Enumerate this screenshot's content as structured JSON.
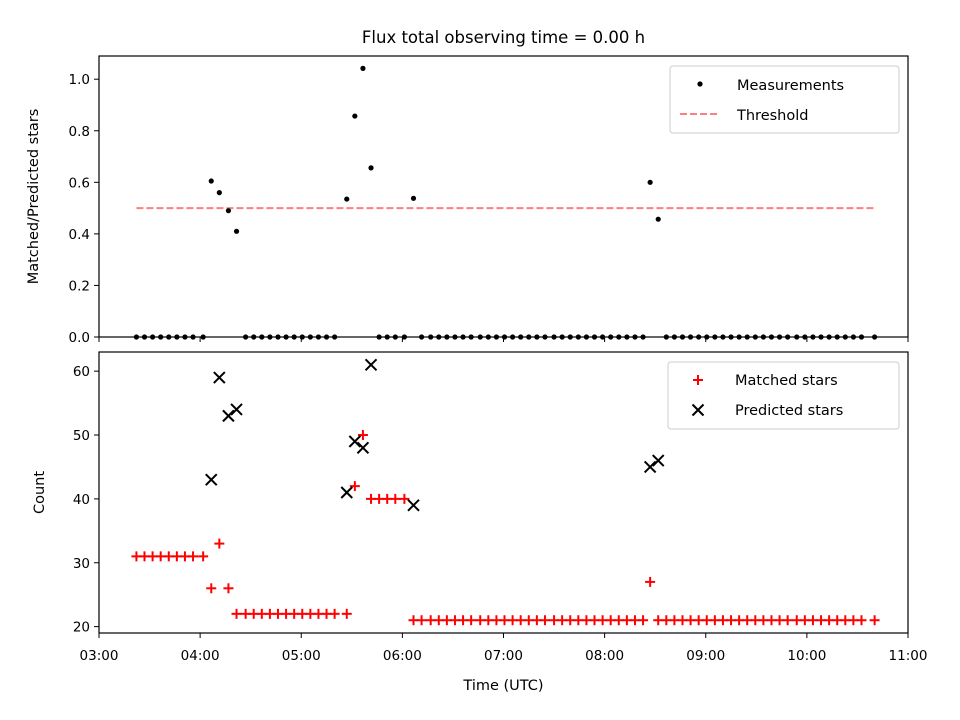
{
  "chart_data": [
    {
      "type": "scatter",
      "title": "Flux total observing time = 0.00 h",
      "xlabel": "",
      "ylabel": "Matched/Predicted stars",
      "xlim": [
        3.0,
        11.0
      ],
      "ylim": [
        0.0,
        1.09
      ],
      "yticks": [
        "0.0",
        "0.2",
        "0.4",
        "0.6",
        "0.8",
        "1.0"
      ],
      "legend_position": "top-right",
      "series": [
        {
          "name": "Measurements",
          "kind": "points",
          "color": "#000000",
          "x": [
            3.37,
            3.45,
            3.53,
            3.61,
            3.69,
            3.77,
            3.85,
            3.93,
            4.03,
            4.11,
            4.19,
            4.28,
            4.36,
            4.45,
            4.53,
            4.61,
            4.69,
            4.77,
            4.85,
            4.93,
            5.01,
            5.09,
            5.17,
            5.25,
            5.33,
            5.45,
            5.53,
            5.61,
            5.69,
            5.77,
            5.85,
            5.93,
            6.02,
            6.11,
            6.19,
            6.28,
            6.36,
            6.44,
            6.52,
            6.6,
            6.68,
            6.77,
            6.85,
            6.93,
            7.01,
            7.09,
            7.17,
            7.25,
            7.33,
            7.41,
            7.5,
            7.58,
            7.66,
            7.74,
            7.82,
            7.9,
            7.98,
            8.06,
            8.14,
            8.22,
            8.3,
            8.38,
            8.45,
            8.53,
            8.61,
            8.69,
            8.77,
            8.85,
            8.93,
            9.01,
            9.09,
            9.17,
            9.25,
            9.33,
            9.41,
            9.49,
            9.57,
            9.65,
            9.73,
            9.81,
            9.9,
            9.98,
            10.06,
            10.14,
            10.22,
            10.3,
            10.38,
            10.46,
            10.54,
            10.67
          ],
          "y": [
            0,
            0,
            0,
            0,
            0,
            0,
            0,
            0,
            0,
            0.605,
            0.56,
            0.49,
            0.41,
            0,
            0,
            0,
            0,
            0,
            0,
            0,
            0,
            0,
            0,
            0,
            0,
            0.535,
            0.857,
            1.042,
            0.656,
            0,
            0,
            0,
            0,
            0.538,
            0,
            0,
            0,
            0,
            0,
            0,
            0,
            0,
            0,
            0,
            0,
            0,
            0,
            0,
            0,
            0,
            0,
            0,
            0,
            0,
            0,
            0,
            0,
            0,
            0,
            0,
            0,
            0,
            0.6,
            0.457,
            0,
            0,
            0,
            0,
            0,
            0,
            0,
            0,
            0,
            0,
            0,
            0,
            0,
            0,
            0,
            0,
            0,
            0,
            0,
            0,
            0,
            0,
            0,
            0,
            0,
            0
          ]
        },
        {
          "name": "Threshold",
          "kind": "dashed-line",
          "color": "#ff7f7f",
          "x": [
            3.37,
            10.67
          ],
          "y": [
            0.5,
            0.5
          ]
        }
      ]
    },
    {
      "type": "scatter",
      "title": "",
      "xlabel": "Time (UTC)",
      "ylabel": "Count",
      "xlim": [
        3.0,
        11.0
      ],
      "ylim": [
        19.0,
        63.0
      ],
      "xticks": [
        "03:00",
        "04:00",
        "05:00",
        "06:00",
        "07:00",
        "08:00",
        "09:00",
        "10:00",
        "11:00"
      ],
      "yticks": [
        "20",
        "30",
        "40",
        "50",
        "60"
      ],
      "legend_position": "top-right",
      "series": [
        {
          "name": "Matched stars",
          "kind": "plus",
          "color": "#ff0000",
          "x": [
            3.37,
            3.45,
            3.53,
            3.61,
            3.69,
            3.77,
            3.85,
            3.93,
            4.03,
            4.11,
            4.19,
            4.28,
            4.36,
            4.45,
            4.53,
            4.61,
            4.69,
            4.77,
            4.85,
            4.93,
            5.01,
            5.09,
            5.17,
            5.25,
            5.33,
            5.45,
            5.53,
            5.61,
            5.69,
            5.77,
            5.85,
            5.93,
            6.02,
            6.11,
            6.19,
            6.28,
            6.36,
            6.44,
            6.52,
            6.6,
            6.68,
            6.77,
            6.85,
            6.93,
            7.01,
            7.09,
            7.17,
            7.25,
            7.33,
            7.41,
            7.5,
            7.58,
            7.66,
            7.74,
            7.82,
            7.9,
            7.98,
            8.06,
            8.14,
            8.22,
            8.3,
            8.38,
            8.45,
            8.53,
            8.61,
            8.69,
            8.77,
            8.85,
            8.93,
            9.01,
            9.09,
            9.17,
            9.25,
            9.33,
            9.41,
            9.49,
            9.57,
            9.65,
            9.73,
            9.81,
            9.9,
            9.98,
            10.06,
            10.14,
            10.22,
            10.3,
            10.38,
            10.46,
            10.54,
            10.67
          ],
          "y": [
            31,
            31,
            31,
            31,
            31,
            31,
            31,
            31,
            31,
            26,
            33,
            26,
            22,
            22,
            22,
            22,
            22,
            22,
            22,
            22,
            22,
            22,
            22,
            22,
            22,
            22,
            42,
            50,
            40,
            40,
            40,
            40,
            40,
            21,
            21,
            21,
            21,
            21,
            21,
            21,
            21,
            21,
            21,
            21,
            21,
            21,
            21,
            21,
            21,
            21,
            21,
            21,
            21,
            21,
            21,
            21,
            21,
            21,
            21,
            21,
            21,
            21,
            27,
            21,
            21,
            21,
            21,
            21,
            21,
            21,
            21,
            21,
            21,
            21,
            21,
            21,
            21,
            21,
            21,
            21,
            21,
            21,
            21,
            21,
            21,
            21,
            21,
            21,
            21,
            21
          ]
        },
        {
          "name": "Predicted stars",
          "kind": "cross",
          "color": "#000000",
          "x": [
            4.11,
            4.19,
            4.28,
            4.36,
            5.45,
            5.53,
            5.61,
            5.69,
            6.11,
            8.45,
            8.53
          ],
          "y": [
            43,
            59,
            53,
            54,
            41,
            49,
            48,
            61,
            39,
            45,
            46
          ]
        }
      ]
    }
  ]
}
